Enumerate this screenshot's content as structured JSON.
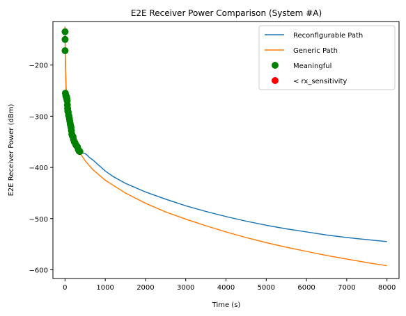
{
  "chart_data": {
    "type": "line",
    "title": "E2E Receiver Power Comparison (System #A)",
    "xlabel": "Time (s)",
    "ylabel": "E2E Receiver Power (dBm)",
    "xlim": [
      -300,
      8300
    ],
    "ylim": [
      -617,
      -115
    ],
    "xticks": [
      0,
      1000,
      2000,
      3000,
      4000,
      5000,
      6000,
      7000,
      8000
    ],
    "yticks": [
      -600,
      -500,
      -400,
      -300,
      -200
    ],
    "grid": false,
    "legend_placement": "top-right",
    "series": [
      {
        "name": "Reconfigurable Path",
        "kind": "line",
        "color": "#1f77b4",
        "points": [
          [
            0,
            -125
          ],
          [
            5,
            -160
          ],
          [
            10,
            -190
          ],
          [
            20,
            -225
          ],
          [
            30,
            -250
          ],
          [
            50,
            -275
          ],
          [
            75,
            -295
          ],
          [
            100,
            -310
          ],
          [
            130,
            -322
          ],
          [
            160,
            -332
          ],
          [
            200,
            -342
          ],
          [
            250,
            -352
          ],
          [
            300,
            -359
          ],
          [
            350,
            -365
          ],
          [
            400,
            -369
          ],
          [
            450,
            -372
          ],
          [
            500,
            -373
          ],
          [
            550,
            -376
          ],
          [
            600,
            -380
          ],
          [
            700,
            -386
          ],
          [
            800,
            -393
          ],
          [
            1000,
            -407
          ],
          [
            1200,
            -418
          ],
          [
            1500,
            -431
          ],
          [
            2000,
            -448
          ],
          [
            2500,
            -462
          ],
          [
            3000,
            -475
          ],
          [
            3500,
            -486
          ],
          [
            4000,
            -496
          ],
          [
            4500,
            -505
          ],
          [
            5000,
            -513
          ],
          [
            5500,
            -520
          ],
          [
            6000,
            -526
          ],
          [
            6500,
            -532
          ],
          [
            7000,
            -537
          ],
          [
            7500,
            -541
          ],
          [
            8000,
            -545
          ]
        ]
      },
      {
        "name": "Generic Path",
        "kind": "line",
        "color": "#ff7f0e",
        "points": [
          [
            0,
            -125
          ],
          [
            5,
            -165
          ],
          [
            10,
            -195
          ],
          [
            20,
            -230
          ],
          [
            30,
            -255
          ],
          [
            50,
            -285
          ],
          [
            75,
            -305
          ],
          [
            100,
            -318
          ],
          [
            150,
            -333
          ],
          [
            200,
            -345
          ],
          [
            300,
            -362
          ],
          [
            400,
            -375
          ],
          [
            500,
            -387
          ],
          [
            700,
            -405
          ],
          [
            1000,
            -425
          ],
          [
            1500,
            -450
          ],
          [
            2000,
            -470
          ],
          [
            2500,
            -487
          ],
          [
            3000,
            -501
          ],
          [
            3500,
            -514
          ],
          [
            4000,
            -526
          ],
          [
            4500,
            -537
          ],
          [
            5000,
            -547
          ],
          [
            5500,
            -556
          ],
          [
            6000,
            -564
          ],
          [
            6500,
            -572
          ],
          [
            7000,
            -579
          ],
          [
            7500,
            -586
          ],
          [
            8000,
            -592
          ]
        ]
      },
      {
        "name": "Meaningful",
        "kind": "scatter",
        "color": "#008000",
        "points": [
          [
            2,
            -135
          ],
          [
            2,
            -150
          ],
          [
            2,
            -172
          ],
          [
            10,
            -255
          ],
          [
            20,
            -260
          ],
          [
            30,
            -262
          ],
          [
            40,
            -262
          ],
          [
            45,
            -265
          ],
          [
            50,
            -268
          ],
          [
            55,
            -270
          ],
          [
            60,
            -278
          ],
          [
            65,
            -285
          ],
          [
            70,
            -290
          ],
          [
            80,
            -292
          ],
          [
            90,
            -298
          ],
          [
            100,
            -300
          ],
          [
            110,
            -305
          ],
          [
            120,
            -310
          ],
          [
            130,
            -315
          ],
          [
            140,
            -318
          ],
          [
            150,
            -322
          ],
          [
            160,
            -328
          ],
          [
            170,
            -335
          ],
          [
            180,
            -338
          ],
          [
            200,
            -340
          ],
          [
            210,
            -345
          ],
          [
            230,
            -350
          ],
          [
            250,
            -352
          ],
          [
            270,
            -356
          ],
          [
            290,
            -358
          ],
          [
            310,
            -360
          ],
          [
            330,
            -365
          ],
          [
            350,
            -368
          ],
          [
            370,
            -369
          ]
        ]
      },
      {
        "name": "< rx_sensitivity",
        "kind": "scatter",
        "color": "#ff0000",
        "points": []
      }
    ]
  }
}
